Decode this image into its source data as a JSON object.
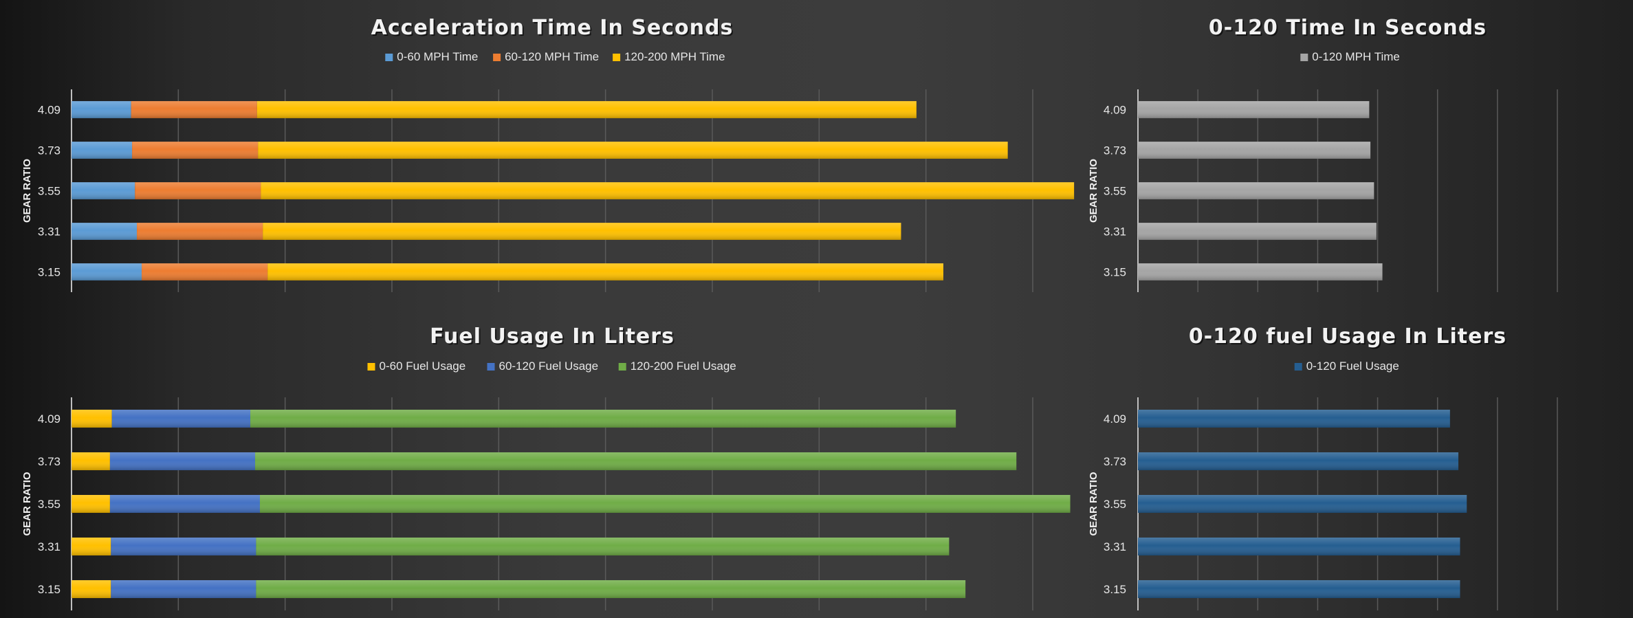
{
  "chart_data": [
    {
      "type": "bar",
      "orientation": "horizontal",
      "stacked": true,
      "title": "Acceleration Time In Seconds",
      "ylabel": "GEAR RATIO",
      "categories": [
        "4.09",
        "3.73",
        "3.55",
        "3.31",
        "3.15"
      ],
      "xlim": [
        0,
        1000
      ],
      "grid": true,
      "legend": "top-center",
      "series": [
        {
          "name": "0-60 MPH Time",
          "color": "#5b9bd5",
          "values": [
            62,
            63,
            66,
            68,
            73
          ]
        },
        {
          "name": "60-120 MPH Time",
          "color": "#ed7d31",
          "values": [
            131,
            131,
            131,
            131,
            131
          ]
        },
        {
          "name": "120-200 MPH Time",
          "color": "#ffc000",
          "values": [
            686,
            780,
            846,
            664,
            703
          ]
        }
      ]
    },
    {
      "type": "bar",
      "orientation": "horizontal",
      "title": "0-120 Time In Seconds",
      "ylabel": "GEAR RATIO",
      "categories": [
        "4.09",
        "3.73",
        "3.55",
        "3.31",
        "3.15"
      ],
      "xlim": [
        0,
        350
      ],
      "grid": true,
      "legend": "top-center",
      "series": [
        {
          "name": "0-120 MPH Time",
          "color": "#a5a5a5",
          "values": [
            193,
            194,
            197,
            199,
            204
          ]
        }
      ]
    },
    {
      "type": "bar",
      "orientation": "horizontal",
      "stacked": true,
      "title": "Fuel Usage In Liters",
      "ylabel": "GEAR RATIO",
      "categories": [
        "4.09",
        "3.73",
        "3.55",
        "3.31",
        "3.15"
      ],
      "xlim": [
        0,
        1000
      ],
      "grid": true,
      "legend": "top-center",
      "series": [
        {
          "name": "0-60 Fuel Usage",
          "color": "#ffc000",
          "values": [
            42,
            40,
            40,
            41,
            41
          ]
        },
        {
          "name": "60-120 Fuel Usage",
          "color": "#4472c4",
          "values": [
            144,
            151,
            156,
            151,
            151
          ]
        },
        {
          "name": "120-200 Fuel Usage",
          "color": "#70ad47",
          "values": [
            734,
            792,
            843,
            721,
            738
          ]
        }
      ]
    },
    {
      "type": "bar",
      "orientation": "horizontal",
      "title": "0-120 fuel Usage In Liters",
      "ylabel": "GEAR RATIO",
      "categories": [
        "4.09",
        "3.73",
        "3.55",
        "3.31",
        "3.15"
      ],
      "xlim": [
        0,
        250
      ],
      "grid": true,
      "legend": "top-center",
      "series": [
        {
          "name": "0-120 Fuel Usage",
          "color": "#255e91",
          "values": [
            186,
            191,
            196,
            192,
            192
          ]
        }
      ]
    }
  ]
}
